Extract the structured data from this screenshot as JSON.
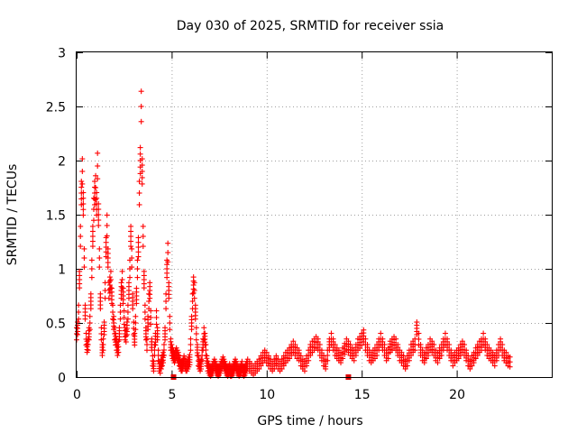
{
  "chart_data": {
    "type": "scatter",
    "title": "Day 030 of 2025, SRMTID for receiver ssia",
    "xlabel": "GPS time / hours",
    "ylabel": "SRMTID / TECUs",
    "xlim": [
      0,
      25
    ],
    "ylim": [
      0,
      3
    ],
    "x_ticks": [
      "0",
      "5",
      "10",
      "15",
      "20"
    ],
    "y_ticks": [
      "0",
      "0.5",
      "1",
      "1.5",
      "2",
      "2.5",
      "3"
    ],
    "x_tick_values": [
      0,
      5,
      10,
      15,
      20
    ],
    "y_tick_values": [
      0,
      0.5,
      1,
      1.5,
      2,
      2.5,
      3
    ],
    "grid": true,
    "marker": "plus",
    "color": "#ff0000",
    "series": [
      {
        "name": "SRMTID",
        "x": [
          0.0,
          0.05,
          0.1,
          0.15,
          0.2,
          0.25,
          0.3,
          0.35,
          0.4,
          0.45,
          0.5,
          0.55,
          0.6,
          0.65,
          0.7,
          0.75,
          0.8,
          0.85,
          0.9,
          0.95,
          1.0,
          1.05,
          1.1,
          1.15,
          1.2,
          1.25,
          1.3,
          1.35,
          1.4,
          1.45,
          1.5,
          1.55,
          1.6,
          1.65,
          1.7,
          1.75,
          1.8,
          1.85,
          1.9,
          1.95,
          2.0,
          2.05,
          2.1,
          2.15,
          2.2,
          2.25,
          2.3,
          2.35,
          2.4,
          2.45,
          2.5,
          2.55,
          2.6,
          2.65,
          2.7,
          2.75,
          2.8,
          2.85,
          2.9,
          2.95,
          3.0,
          3.05,
          3.1,
          3.15,
          3.2,
          3.25,
          3.3,
          3.35,
          3.4,
          3.45,
          3.5,
          3.55,
          3.6,
          3.65,
          3.7,
          3.75,
          3.8,
          3.85,
          3.9,
          3.95,
          4.0,
          4.05,
          4.1,
          4.15,
          4.2,
          4.25,
          4.3,
          4.35,
          4.4,
          4.45,
          4.5,
          4.55,
          4.6,
          4.65,
          4.7,
          4.75,
          4.8,
          4.85,
          4.9,
          4.95,
          5.0,
          5.05,
          5.1,
          5.15,
          5.2,
          5.25,
          5.3,
          5.35,
          5.4,
          5.45,
          5.5,
          5.55,
          5.6,
          5.65,
          5.7,
          5.75,
          5.8,
          5.85,
          5.9,
          5.95,
          6.0,
          6.05,
          6.1,
          6.15,
          6.2,
          6.25,
          6.3,
          6.35,
          6.4,
          6.45,
          6.5,
          6.55,
          6.6,
          6.65,
          6.7,
          6.75,
          6.8,
          6.85,
          6.9,
          6.95,
          7.0,
          7.05,
          7.1,
          7.15,
          7.2,
          7.25,
          7.3,
          7.35,
          7.4,
          7.45,
          7.5,
          7.55,
          7.6,
          7.65,
          7.7,
          7.75,
          7.8,
          7.85,
          7.9,
          7.95,
          8.0,
          8.05,
          8.1,
          8.15,
          8.2,
          8.25,
          8.3,
          8.35,
          8.4,
          8.45,
          8.5,
          8.55,
          8.6,
          8.65,
          8.7,
          8.75,
          8.8,
          8.85,
          8.9,
          8.95,
          9.0,
          9.1,
          9.2,
          9.3,
          9.4,
          9.5,
          9.6,
          9.7,
          9.8,
          9.9,
          10.0,
          10.1,
          10.2,
          10.3,
          10.4,
          10.5,
          10.6,
          10.7,
          10.8,
          10.9,
          11.0,
          11.1,
          11.2,
          11.3,
          11.4,
          11.5,
          11.6,
          11.7,
          11.8,
          11.9,
          12.0,
          12.1,
          12.2,
          12.3,
          12.4,
          12.5,
          12.6,
          12.7,
          12.8,
          12.9,
          13.0,
          13.1,
          13.2,
          13.3,
          13.4,
          13.5,
          13.6,
          13.7,
          13.8,
          13.9,
          14.0,
          14.1,
          14.2,
          14.3,
          14.4,
          14.5,
          14.6,
          14.7,
          14.8,
          14.9,
          15.0,
          15.1,
          15.2,
          15.3,
          15.4,
          15.5,
          15.6,
          15.7,
          15.8,
          15.9,
          16.0,
          16.1,
          16.2,
          16.3,
          16.4,
          16.5,
          16.6,
          16.7,
          16.8,
          16.9,
          17.0,
          17.1,
          17.2,
          17.3,
          17.4,
          17.5,
          17.6,
          17.7,
          17.8,
          17.9,
          18.0,
          18.1,
          18.2,
          18.3,
          18.4,
          18.5,
          18.6,
          18.7,
          18.8,
          18.9,
          19.0,
          19.1,
          19.2,
          19.3,
          19.4,
          19.5,
          19.6,
          19.7,
          19.8,
          19.9,
          20.0,
          20.1,
          20.2,
          20.3,
          20.4,
          20.5,
          20.6,
          20.7,
          20.8,
          20.9,
          21.0,
          21.1,
          21.2,
          21.3,
          21.4,
          21.5,
          21.6,
          21.7,
          21.8,
          21.9,
          22.0,
          22.1,
          22.2,
          22.3,
          22.4,
          22.5,
          22.6,
          22.7,
          22.8
        ],
        "y": [
          0.4,
          0.45,
          0.6,
          0.9,
          1.3,
          1.7,
          1.9,
          1.6,
          1.1,
          0.6,
          0.35,
          0.28,
          0.3,
          0.4,
          0.5,
          0.7,
          1.0,
          1.3,
          1.55,
          1.7,
          1.75,
          1.6,
          1.95,
          1.5,
          1.1,
          0.7,
          0.4,
          0.25,
          0.3,
          0.45,
          0.8,
          1.2,
          1.4,
          1.1,
          0.8,
          0.85,
          0.9,
          0.75,
          0.6,
          0.5,
          0.4,
          0.35,
          0.3,
          0.25,
          0.28,
          0.4,
          0.6,
          0.8,
          0.9,
          0.75,
          0.55,
          0.4,
          0.38,
          0.45,
          0.6,
          0.8,
          1.0,
          1.3,
          1.1,
          0.7,
          0.45,
          0.35,
          0.5,
          0.75,
          1.0,
          1.2,
          1.7,
          2.0,
          2.5,
          1.9,
          1.3,
          0.9,
          0.6,
          0.4,
          0.3,
          0.5,
          0.7,
          0.8,
          0.55,
          0.3,
          0.15,
          0.1,
          0.25,
          0.35,
          0.55,
          0.4,
          0.2,
          0.1,
          0.08,
          0.12,
          0.15,
          0.18,
          0.25,
          0.4,
          0.7,
          1.0,
          1.15,
          0.8,
          0.5,
          0.3,
          0.25,
          0.22,
          0.2,
          0.18,
          0.2,
          0.22,
          0.2,
          0.18,
          0.15,
          0.12,
          0.1,
          0.1,
          0.12,
          0.15,
          0.12,
          0.1,
          0.1,
          0.12,
          0.14,
          0.16,
          0.3,
          0.5,
          0.7,
          0.85,
          0.8,
          0.6,
          0.4,
          0.25,
          0.15,
          0.12,
          0.1,
          0.12,
          0.2,
          0.3,
          0.4,
          0.35,
          0.25,
          0.15,
          0.1,
          0.08,
          0.06,
          0.05,
          0.06,
          0.08,
          0.1,
          0.12,
          0.1,
          0.08,
          0.06,
          0.05,
          0.06,
          0.08,
          0.1,
          0.12,
          0.14,
          0.12,
          0.1,
          0.08,
          0.06,
          0.05,
          0.06,
          0.08,
          0.05,
          0.05,
          0.06,
          0.08,
          0.1,
          0.12,
          0.1,
          0.08,
          0.06,
          0.05,
          0.06,
          0.08,
          0.1,
          0.06,
          0.05,
          0.06,
          0.08,
          0.1,
          0.12,
          0.1,
          0.08,
          0.06,
          0.08,
          0.1,
          0.12,
          0.15,
          0.18,
          0.2,
          0.18,
          0.15,
          0.12,
          0.1,
          0.12,
          0.15,
          0.12,
          0.1,
          0.12,
          0.15,
          0.18,
          0.2,
          0.22,
          0.25,
          0.28,
          0.25,
          0.22,
          0.2,
          0.15,
          0.12,
          0.1,
          0.15,
          0.2,
          0.25,
          0.28,
          0.3,
          0.32,
          0.3,
          0.25,
          0.2,
          0.15,
          0.12,
          0.2,
          0.3,
          0.35,
          0.3,
          0.25,
          0.22,
          0.2,
          0.18,
          0.22,
          0.26,
          0.3,
          0.28,
          0.25,
          0.22,
          0.2,
          0.25,
          0.3,
          0.32,
          0.35,
          0.38,
          0.3,
          0.25,
          0.2,
          0.18,
          0.2,
          0.22,
          0.25,
          0.3,
          0.35,
          0.3,
          0.25,
          0.2,
          0.22,
          0.28,
          0.3,
          0.32,
          0.3,
          0.25,
          0.2,
          0.18,
          0.15,
          0.12,
          0.15,
          0.2,
          0.25,
          0.28,
          0.3,
          0.45,
          0.35,
          0.25,
          0.2,
          0.18,
          0.22,
          0.25,
          0.3,
          0.28,
          0.25,
          0.2,
          0.18,
          0.22,
          0.25,
          0.3,
          0.35,
          0.3,
          0.25,
          0.2,
          0.15,
          0.18,
          0.2,
          0.22,
          0.25,
          0.28,
          0.25,
          0.2,
          0.15,
          0.12,
          0.15,
          0.18,
          0.22,
          0.25,
          0.28,
          0.3,
          0.35,
          0.3,
          0.25,
          0.22,
          0.2,
          0.18,
          0.15,
          0.2,
          0.25,
          0.3,
          0.25,
          0.2,
          0.18,
          0.15,
          0.14
        ],
        "scatter_amplitude": 0.04
      }
    ],
    "baseline_markers": {
      "x": [
        5.1,
        14.3
      ],
      "y": [
        0,
        0
      ]
    }
  }
}
